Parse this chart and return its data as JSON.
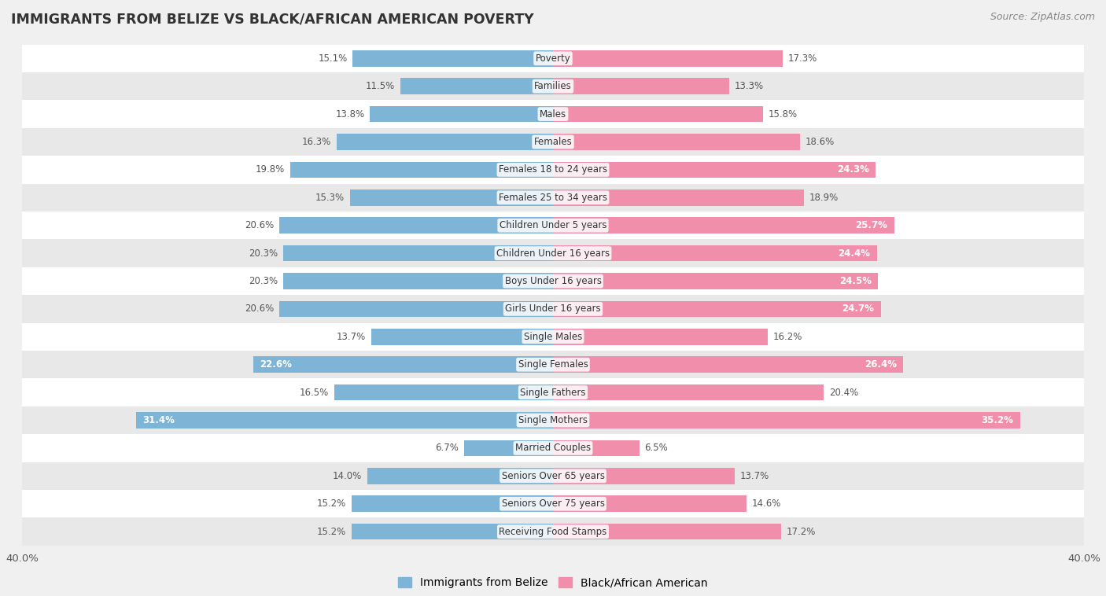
{
  "title": "IMMIGRANTS FROM BELIZE VS BLACK/AFRICAN AMERICAN POVERTY",
  "source": "Source: ZipAtlas.com",
  "categories": [
    "Poverty",
    "Families",
    "Males",
    "Females",
    "Females 18 to 24 years",
    "Females 25 to 34 years",
    "Children Under 5 years",
    "Children Under 16 years",
    "Boys Under 16 years",
    "Girls Under 16 years",
    "Single Males",
    "Single Females",
    "Single Fathers",
    "Single Mothers",
    "Married Couples",
    "Seniors Over 65 years",
    "Seniors Over 75 years",
    "Receiving Food Stamps"
  ],
  "belize_values": [
    15.1,
    11.5,
    13.8,
    16.3,
    19.8,
    15.3,
    20.6,
    20.3,
    20.3,
    20.6,
    13.7,
    22.6,
    16.5,
    31.4,
    6.7,
    14.0,
    15.2,
    15.2
  ],
  "black_values": [
    17.3,
    13.3,
    15.8,
    18.6,
    24.3,
    18.9,
    25.7,
    24.4,
    24.5,
    24.7,
    16.2,
    26.4,
    20.4,
    35.2,
    6.5,
    13.7,
    14.6,
    17.2
  ],
  "belize_color": "#7eb5d6",
  "black_color": "#f08eac",
  "belize_label": "Immigrants from Belize",
  "black_label": "Black/African American",
  "xlim": 40.0,
  "background_color": "#f0f0f0",
  "row_white_color": "#ffffff",
  "row_gray_color": "#e8e8e8",
  "inside_label_threshold": 22.0,
  "inside_label_color": "#ffffff",
  "outside_label_color": "#555555"
}
